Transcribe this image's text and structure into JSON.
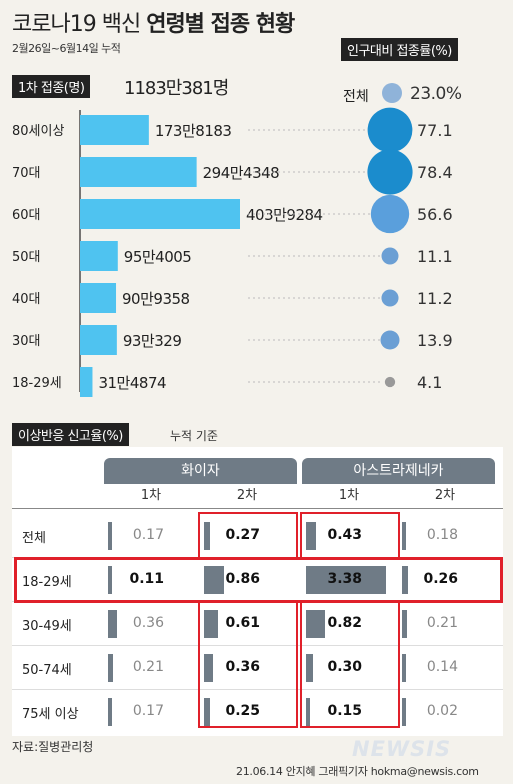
{
  "header": {
    "title_plain": "코로나19 백신",
    "title_bold": "연령별 접종 현황",
    "period": "2월26일~6월14일 누적",
    "rate_tag": "인구대비 접종률(%)",
    "first_dose_tag": "1차 접종(명)",
    "first_dose_total": "1183만381명",
    "overall_label": "전체",
    "overall_rate": "23.0%"
  },
  "adverse": {
    "tag": "이상반응 신고율(%)",
    "note": "누적 기준"
  },
  "footer": {
    "source": "자료:질병관리청",
    "credit": "21.06.14 안지혜 그래픽기자 hokma@newsis.com",
    "watermark": "NEWSIS"
  },
  "colors": {
    "bar": "#4fc3f0",
    "bubble_dark": "#1b8ccd",
    "bubble_light": "#5a9fdc",
    "bubble_gray": "#999999",
    "table_header": "#6f7b86",
    "cell_bar": "#6f7b86",
    "highlight": "#e0202a",
    "background": "#f4f2ec"
  },
  "chart_data": [
    {
      "type": "bar",
      "categories": [
        "80세이상",
        "70대",
        "60대",
        "50대",
        "40대",
        "30대",
        "18-29세"
      ],
      "values": [
        1738183,
        2944348,
        4039284,
        954005,
        909358,
        930329,
        314874
      ],
      "value_labels": [
        "173만8183",
        "294만4348",
        "403만9284",
        "95만4005",
        "90만9358",
        "93만329",
        "31만4874"
      ]
    },
    {
      "type": "scatter",
      "categories": [
        "80세이상",
        "70대",
        "60대",
        "50대",
        "40대",
        "30대",
        "18-29세"
      ],
      "values": [
        77.1,
        78.4,
        56.6,
        11.1,
        11.2,
        13.9,
        4.1
      ],
      "value_labels": [
        "77.1",
        "78.4",
        "56.6",
        "11.1",
        "11.2",
        "13.9",
        "4.1"
      ]
    },
    {
      "type": "table",
      "groups": [
        "화이자",
        "아스트라제네카"
      ],
      "subheaders": [
        "1차",
        "2차",
        "1차",
        "2차"
      ],
      "rows": [
        {
          "label": "전체",
          "values": [
            0.17,
            0.27,
            0.43,
            0.18
          ],
          "texts": [
            "0.17",
            "0.27",
            "0.43",
            "0.18"
          ]
        },
        {
          "label": "18-29세",
          "values": [
            0.11,
            0.86,
            3.38,
            0.26
          ],
          "texts": [
            "0.11",
            "0.86",
            "3.38",
            "0.26"
          ]
        },
        {
          "label": "30-49세",
          "values": [
            0.36,
            0.61,
            0.82,
            0.21
          ],
          "texts": [
            "0.36",
            "0.61",
            "0.82",
            "0.21"
          ]
        },
        {
          "label": "50-74세",
          "values": [
            0.21,
            0.36,
            0.3,
            0.14
          ],
          "texts": [
            "0.21",
            "0.36",
            "0.30",
            "0.14"
          ]
        },
        {
          "label": "75세 이상",
          "values": [
            0.17,
            0.25,
            0.15,
            0.02
          ],
          "texts": [
            "0.17",
            "0.25",
            "0.15",
            "0.02"
          ]
        }
      ]
    }
  ]
}
